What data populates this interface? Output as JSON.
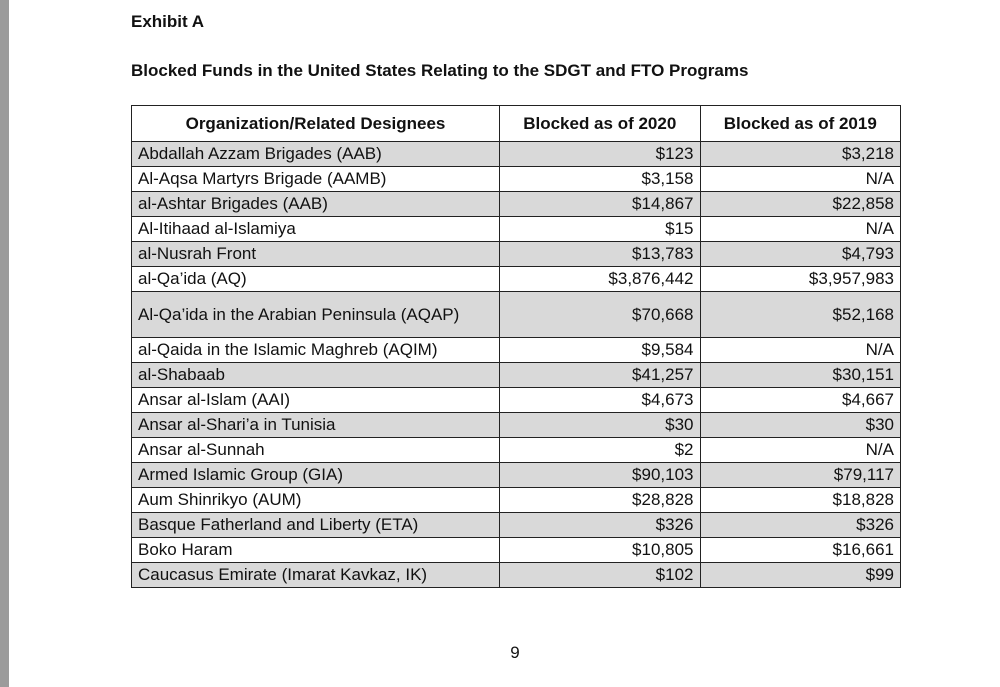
{
  "exhibit_label": "Exhibit A",
  "title": "Blocked Funds in the United States Relating to the SDGT and FTO Programs",
  "table": {
    "headers": [
      "Organization/Related Designees",
      "Blocked as of 2020",
      "Blocked as of 2019"
    ],
    "rows": [
      {
        "org": "Abdallah Azzam Brigades (AAB)",
        "y2020": "$123",
        "y2019": "$3,218",
        "shaded": true
      },
      {
        "org": "Al-Aqsa Martyrs Brigade (AAMB)",
        "y2020": "$3,158",
        "y2019": "N/A",
        "shaded": false
      },
      {
        "org": "al-Ashtar Brigades (AAB)",
        "y2020": "$14,867",
        "y2019": "$22,858",
        "shaded": true
      },
      {
        "org": "Al-Itihaad al-Islamiya",
        "y2020": "$15",
        "y2019": "N/A",
        "shaded": false
      },
      {
        "org": "al-Nusrah Front",
        "y2020": "$13,783",
        "y2019": "$4,793",
        "shaded": true
      },
      {
        "org": "al-Qa’ida (AQ)",
        "y2020": "$3,876,442",
        "y2019": "$3,957,983",
        "shaded": false
      },
      {
        "org": "Al-Qa’ida in the Arabian Peninsula (AQAP)",
        "y2020": "$70,668",
        "y2019": "$52,168",
        "shaded": true,
        "tall": true
      },
      {
        "org": "al-Qaida in the Islamic Maghreb (AQIM)",
        "y2020": "$9,584",
        "y2019": "N/A",
        "shaded": false
      },
      {
        "org": "al-Shabaab",
        "y2020": "$41,257",
        "y2019": "$30,151",
        "shaded": true
      },
      {
        "org": "Ansar al-Islam (AAI)",
        "y2020": "$4,673",
        "y2019": "$4,667",
        "shaded": false
      },
      {
        "org": "Ansar al-Shari’a in Tunisia",
        "y2020": "$30",
        "y2019": "$30",
        "shaded": true
      },
      {
        "org": "Ansar al-Sunnah",
        "y2020": "$2",
        "y2019": "N/A",
        "shaded": false
      },
      {
        "org": "Armed Islamic Group (GIA)",
        "y2020": "$90,103",
        "y2019": "$79,117",
        "shaded": true
      },
      {
        "org": "Aum Shinrikyo (AUM)",
        "y2020": "$28,828",
        "y2019": "$18,828",
        "shaded": false
      },
      {
        "org": "Basque Fatherland and Liberty (ETA)",
        "y2020": "$326",
        "y2019": "$326",
        "shaded": true
      },
      {
        "org": "Boko Haram",
        "y2020": "$10,805",
        "y2019": "$16,661",
        "shaded": false
      },
      {
        "org": "Caucasus Emirate (Imarat Kavkaz, IK)",
        "y2020": "$102",
        "y2019": "$99",
        "shaded": true
      }
    ]
  },
  "page_number": "9",
  "colors": {
    "shaded_row": "#d9d9d9",
    "left_bar": "#9b9b9b"
  }
}
